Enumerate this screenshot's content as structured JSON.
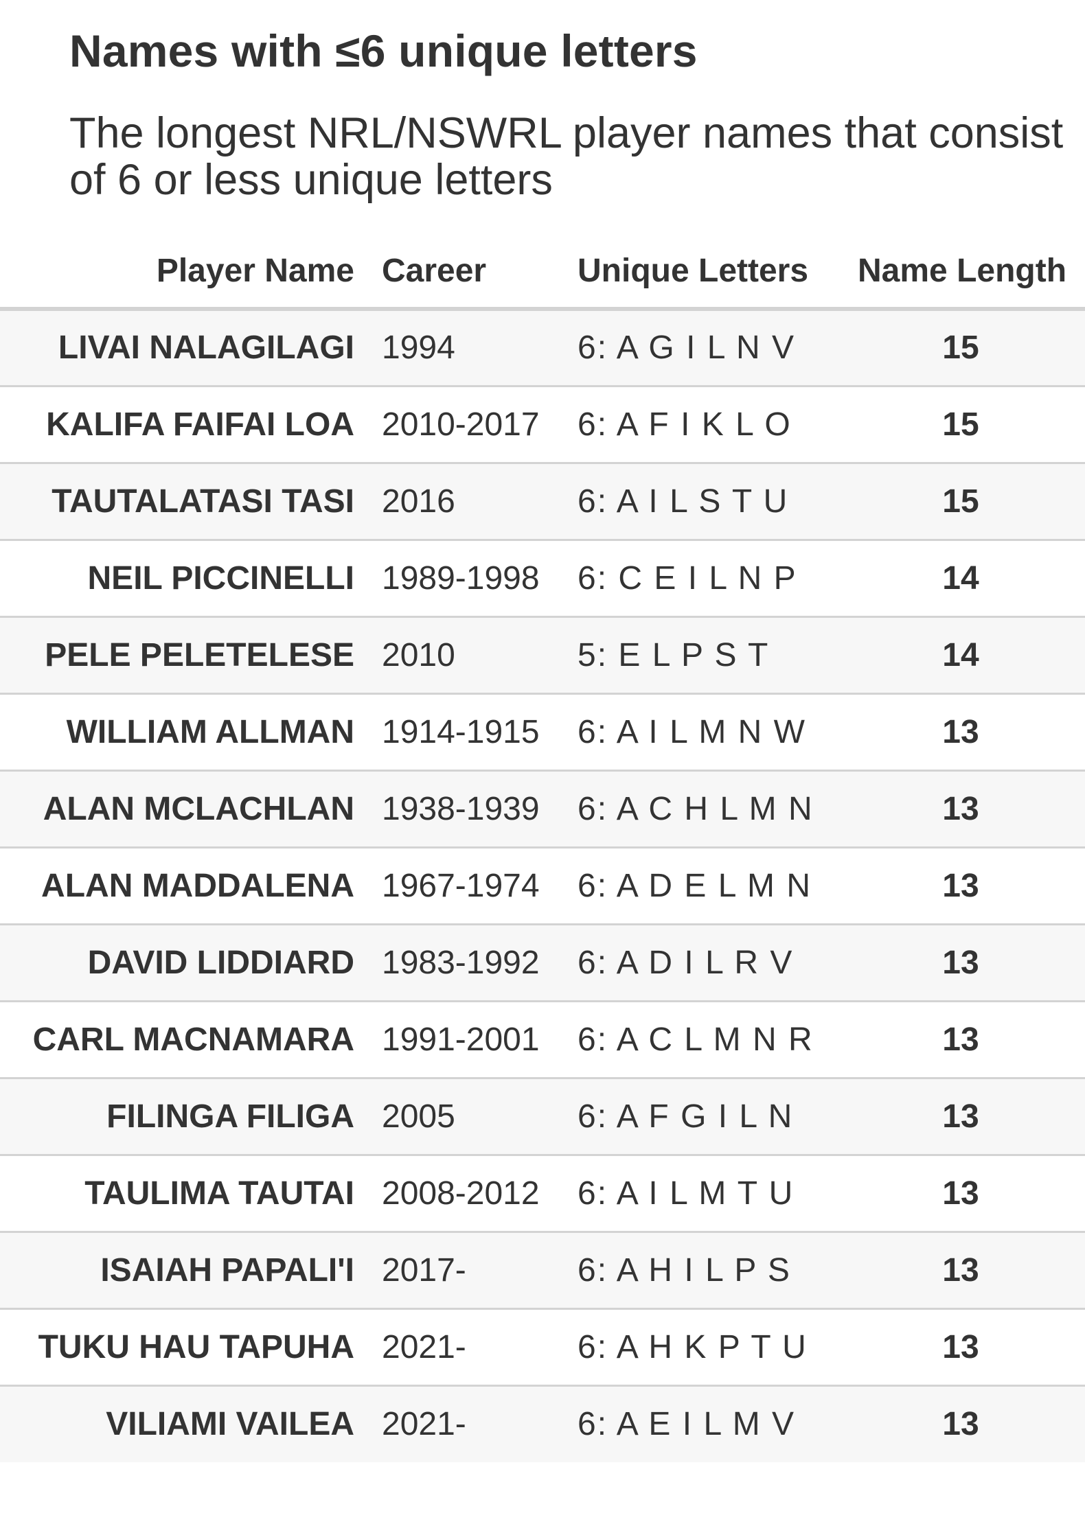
{
  "title": "Names with ≤6 unique letters",
  "subtitle": "The longest NRL/NSWRL player names that consist of 6 or less unique letters",
  "chart_data": {
    "type": "table",
    "columns": [
      "Player Name",
      "Career",
      "Unique Letters",
      "Name Length"
    ],
    "rows": [
      {
        "name": "LIVAI NALAGILAGI",
        "career": "1994",
        "letters": "6: A G I L N V",
        "length": 15
      },
      {
        "name": "KALIFA FAIFAI LOA",
        "career": "2010-2017",
        "letters": "6: A F I K L O",
        "length": 15
      },
      {
        "name": "TAUTALATASI TASI",
        "career": "2016",
        "letters": "6: A I L S T U",
        "length": 15
      },
      {
        "name": "NEIL PICCINELLI",
        "career": "1989-1998",
        "letters": "6: C E I L N P",
        "length": 14
      },
      {
        "name": "PELE PELETELESE",
        "career": "2010",
        "letters": "5: E L P S T",
        "length": 14
      },
      {
        "name": "WILLIAM ALLMAN",
        "career": "1914-1915",
        "letters": "6: A I L M N W",
        "length": 13
      },
      {
        "name": "ALAN MCLACHLAN",
        "career": "1938-1939",
        "letters": "6: A C H L M N",
        "length": 13
      },
      {
        "name": "ALAN MADDALENA",
        "career": "1967-1974",
        "letters": "6: A D E L M N",
        "length": 13
      },
      {
        "name": "DAVID LIDDIARD",
        "career": "1983-1992",
        "letters": "6: A D I L R V",
        "length": 13
      },
      {
        "name": "CARL MACNAMARA",
        "career": "1991-2001",
        "letters": "6: A C L M N R",
        "length": 13
      },
      {
        "name": "FILINGA FILIGA",
        "career": "2005",
        "letters": "6: A F G I L N",
        "length": 13
      },
      {
        "name": "TAULIMA TAUTAI",
        "career": "2008-2012",
        "letters": "6: A I L M T U",
        "length": 13
      },
      {
        "name": "ISAIAH PAPALI'I",
        "career": "2017-",
        "letters": "6: A H I L P S",
        "length": 13
      },
      {
        "name": "TUKU HAU TAPUHA",
        "career": "2021-",
        "letters": "6: A H K P T U",
        "length": 13
      },
      {
        "name": "VILIAMI VAILEA",
        "career": "2021-",
        "letters": "6: A E I L M V",
        "length": 13
      }
    ]
  }
}
